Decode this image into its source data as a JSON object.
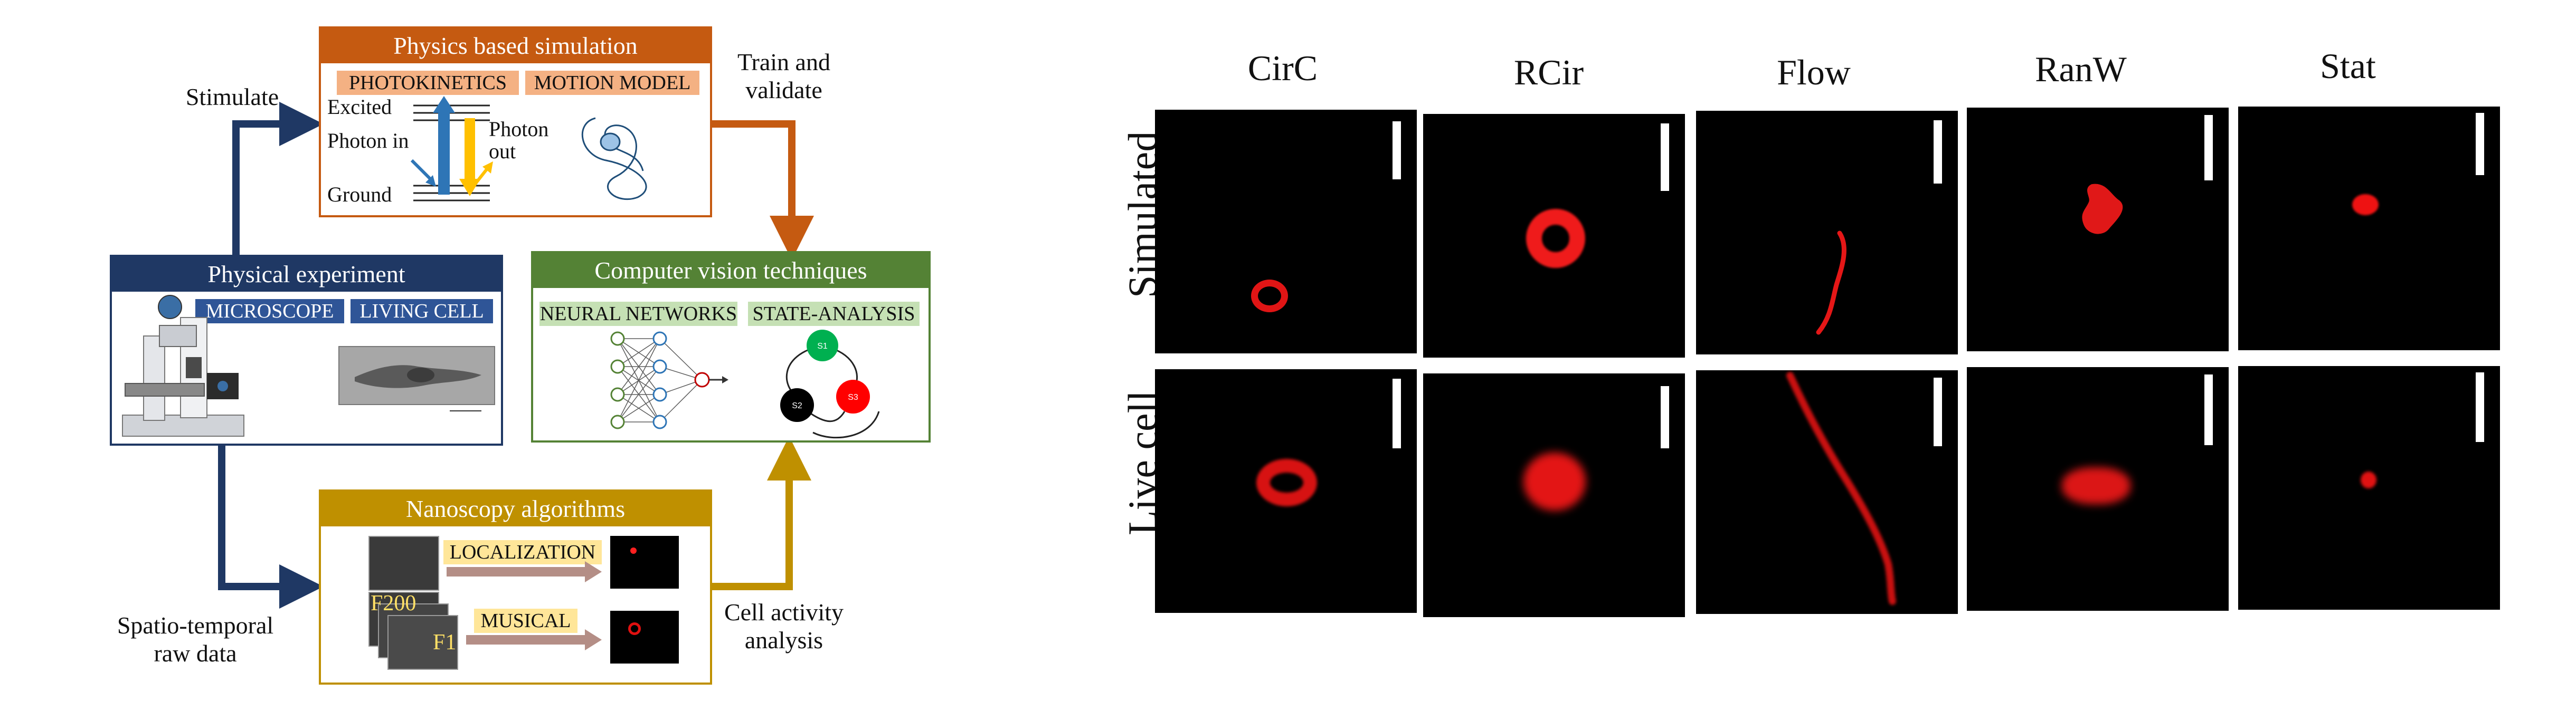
{
  "workflow": {
    "physics_sim": {
      "title": "Physics based simulation",
      "tags": [
        "PHOTOKINETICS",
        "MOTION MODEL"
      ],
      "levels": [
        "Excited",
        "Ground"
      ],
      "photon_in": "Photon in",
      "photon_out": "Photon\nout"
    },
    "physical_exp": {
      "title": "Physical experiment",
      "tags": [
        "MICROSCOPE",
        "LIVING CELL"
      ]
    },
    "computer_vision": {
      "title": "Computer vision techniques",
      "tags": [
        "NEURAL NETWORKS",
        "STATE-ANALYSIS"
      ],
      "states": [
        "S1",
        "S2",
        "S3"
      ]
    },
    "nanoscopy": {
      "title": "Nanoscopy algorithms",
      "methods": [
        "LOCALIZATION",
        "MUSICAL"
      ],
      "frame_labels": [
        "F200",
        "F1"
      ]
    },
    "arrow_labels": {
      "stimulate": "Stimulate",
      "train_validate": "Train and\nvalidate",
      "spatio": "Spatio-temporal\nraw data",
      "cell_activity": "Cell activity\nanalysis"
    },
    "colors": {
      "navy": "#1f3864",
      "orange": "#c55a11",
      "green": "#548235",
      "gold": "#bf9000",
      "peach": "#f4b183",
      "pale_green": "#c5e0b4",
      "pale_yellow": "#ffe699",
      "blue_tag": "#2f5597"
    }
  },
  "gallery": {
    "columns": [
      "CirC",
      "RCir",
      "Flow",
      "RanW",
      "Stat"
    ],
    "rows": [
      "Simulated",
      "Live cell"
    ]
  }
}
